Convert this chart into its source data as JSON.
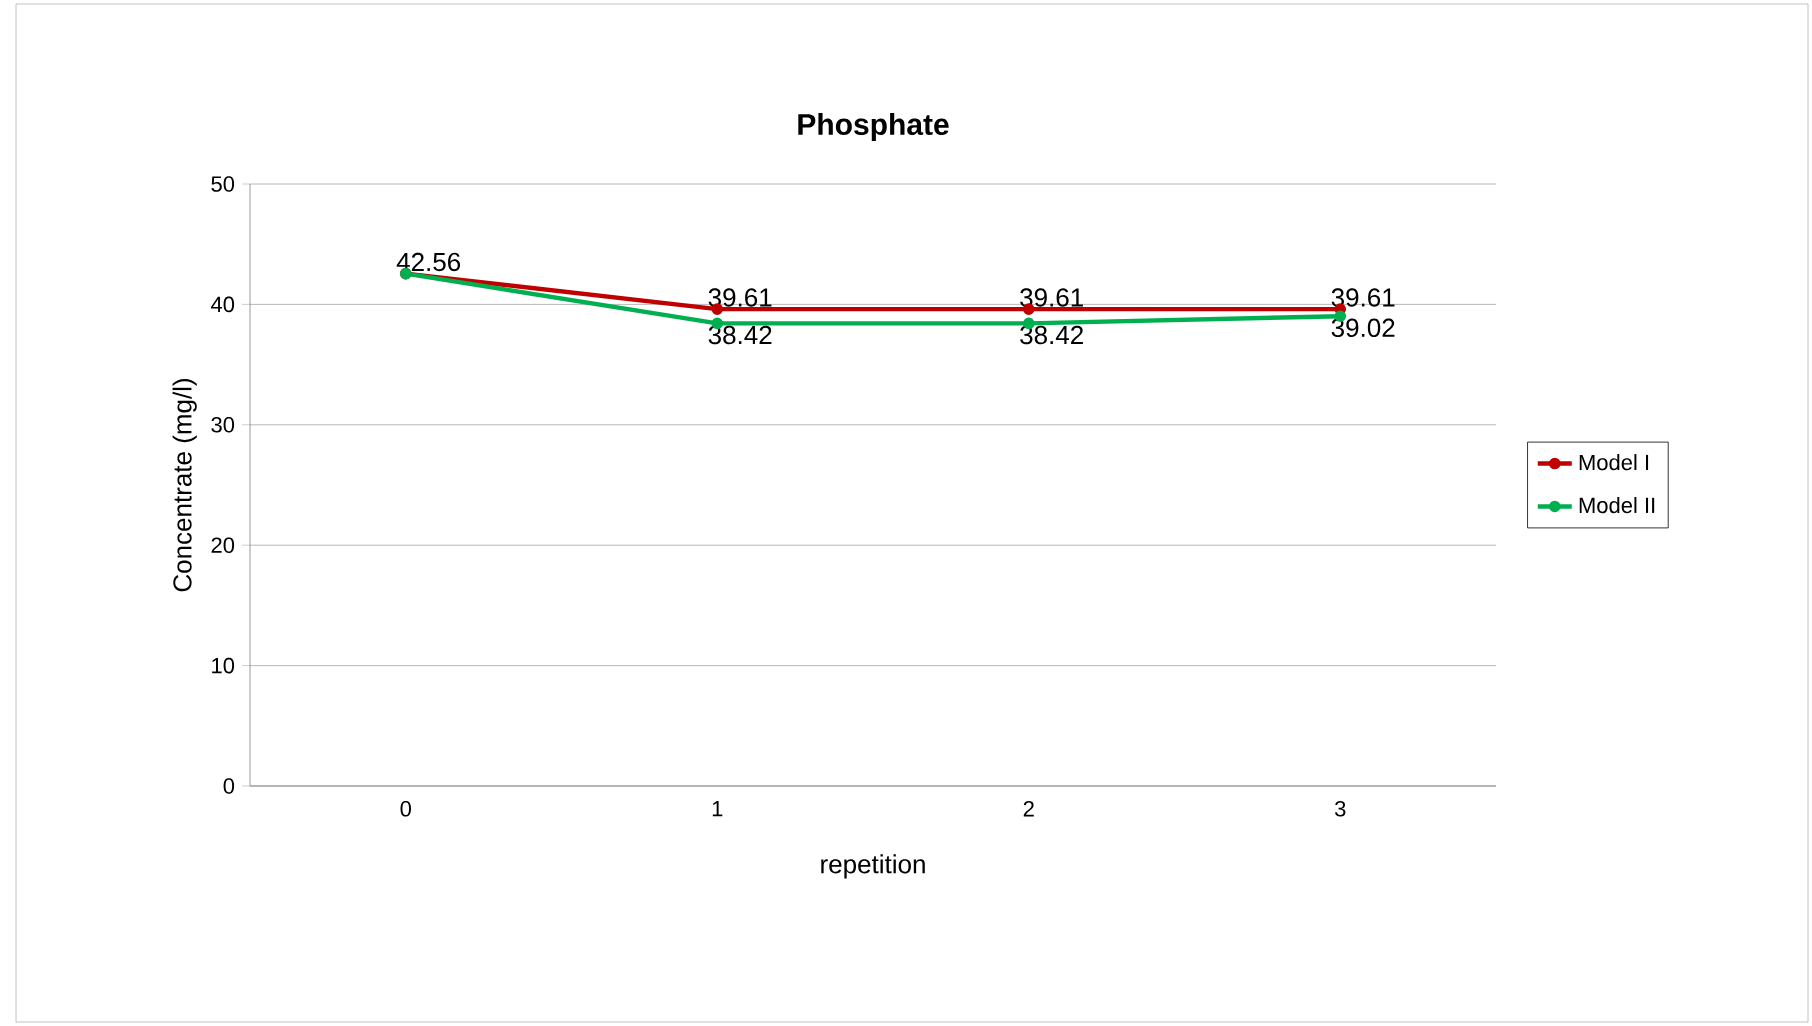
{
  "chart_data": {
    "type": "line",
    "title": "Phosphate",
    "xlabel": "repetition",
    "ylabel": "Concentrate (mg/l)",
    "categories": [
      "0",
      "1",
      "2",
      "3"
    ],
    "ylim": [
      0,
      50
    ],
    "yticks": [
      0,
      10,
      20,
      30,
      40,
      50
    ],
    "grid": "y",
    "legend": "right",
    "marker": "circle",
    "line_style": "solid",
    "series": [
      {
        "name": "Model I",
        "color": "#c00000",
        "values": [
          42.56,
          39.61,
          39.61,
          39.61
        ],
        "value_labels": [
          "42.56",
          "39.61",
          "39.61",
          "39.61"
        ]
      },
      {
        "name": "Model II",
        "color": "#00b050",
        "values": [
          42.56,
          38.42,
          38.42,
          39.02
        ],
        "value_labels": [
          null,
          "38.42",
          "38.42",
          "39.02"
        ]
      }
    ]
  }
}
